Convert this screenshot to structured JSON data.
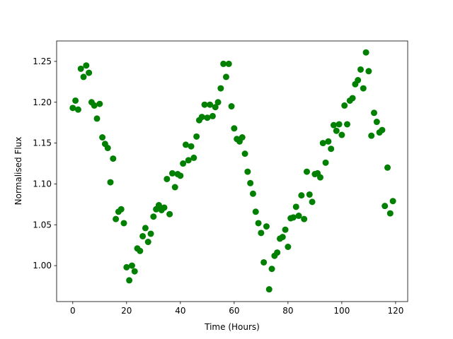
{
  "chart_data": {
    "type": "scatter",
    "xlabel": "Time (Hours)",
    "ylabel": "Normalised Flux",
    "color": "#008000",
    "xlim": [
      -6,
      124.5
    ],
    "ylim": [
      0.956,
      1.275
    ],
    "xticks": [
      0,
      20,
      40,
      60,
      80,
      100,
      120
    ],
    "yticks": [
      {
        "value": 1.0,
        "label": "1.00"
      },
      {
        "value": 1.05,
        "label": "1.05"
      },
      {
        "value": 1.1,
        "label": "1.10"
      },
      {
        "value": 1.15,
        "label": "1.15"
      },
      {
        "value": 1.2,
        "label": "1.20"
      },
      {
        "value": 1.25,
        "label": "1.25"
      }
    ],
    "x": [
      0,
      1,
      2,
      3,
      4,
      5,
      6,
      7,
      8,
      9,
      10,
      11,
      12,
      13,
      14,
      15,
      16,
      17,
      18,
      19,
      20,
      21,
      22,
      23,
      24,
      25,
      26,
      27,
      28,
      29,
      30,
      31,
      32,
      33,
      34,
      35,
      36,
      37,
      38,
      39,
      40,
      41,
      42,
      43,
      44,
      45,
      46,
      47,
      48,
      49,
      50,
      51,
      52,
      53,
      54,
      55,
      56,
      57,
      58,
      59,
      60,
      61,
      62,
      63,
      64,
      65,
      66,
      67,
      68,
      69,
      70,
      71,
      72,
      73,
      74,
      75,
      76,
      77,
      78,
      79,
      80,
      81,
      82,
      83,
      84,
      85,
      86,
      87,
      88,
      89,
      90,
      91,
      92,
      93,
      94,
      95,
      96,
      97,
      98,
      99,
      100,
      101,
      102,
      103,
      104,
      105,
      106,
      107,
      108,
      109,
      110,
      111,
      112,
      113,
      114,
      115,
      116,
      117,
      118,
      119
    ],
    "values": [
      1.193,
      1.202,
      1.191,
      1.241,
      1.231,
      1.245,
      1.236,
      1.2,
      1.196,
      1.18,
      1.198,
      1.157,
      1.149,
      1.144,
      1.102,
      1.131,
      1.057,
      1.066,
      1.069,
      1.052,
      0.998,
      0.982,
      1.0,
      0.993,
      1.021,
      1.018,
      1.036,
      1.046,
      1.029,
      1.039,
      1.06,
      1.069,
      1.074,
      1.068,
      1.071,
      1.106,
      1.063,
      1.113,
      1.096,
      1.112,
      1.11,
      1.125,
      1.148,
      1.129,
      1.146,
      1.132,
      1.158,
      1.178,
      1.182,
      1.197,
      1.181,
      1.197,
      1.183,
      1.194,
      1.2,
      1.217,
      1.247,
      1.231,
      1.247,
      1.195,
      1.168,
      1.155,
      1.152,
      1.157,
      1.137,
      1.115,
      1.101,
      1.088,
      1.066,
      1.052,
      1.04,
      1.004,
      1.048,
      0.971,
      0.996,
      1.012,
      1.016,
      1.033,
      1.035,
      1.044,
      1.023,
      1.058,
      1.059,
      1.072,
      1.061,
      1.086,
      1.057,
      1.115,
      1.087,
      1.078,
      1.112,
      1.113,
      1.108,
      1.15,
      1.126,
      1.152,
      1.143,
      1.172,
      1.165,
      1.173,
      1.16,
      1.196,
      1.173,
      1.202,
      1.205,
      1.222,
      1.227,
      1.24,
      1.217,
      1.261,
      1.238,
      1.159,
      1.187,
      1.176,
      1.163,
      1.166,
      1.073,
      1.12,
      1.064,
      1.079
    ]
  }
}
